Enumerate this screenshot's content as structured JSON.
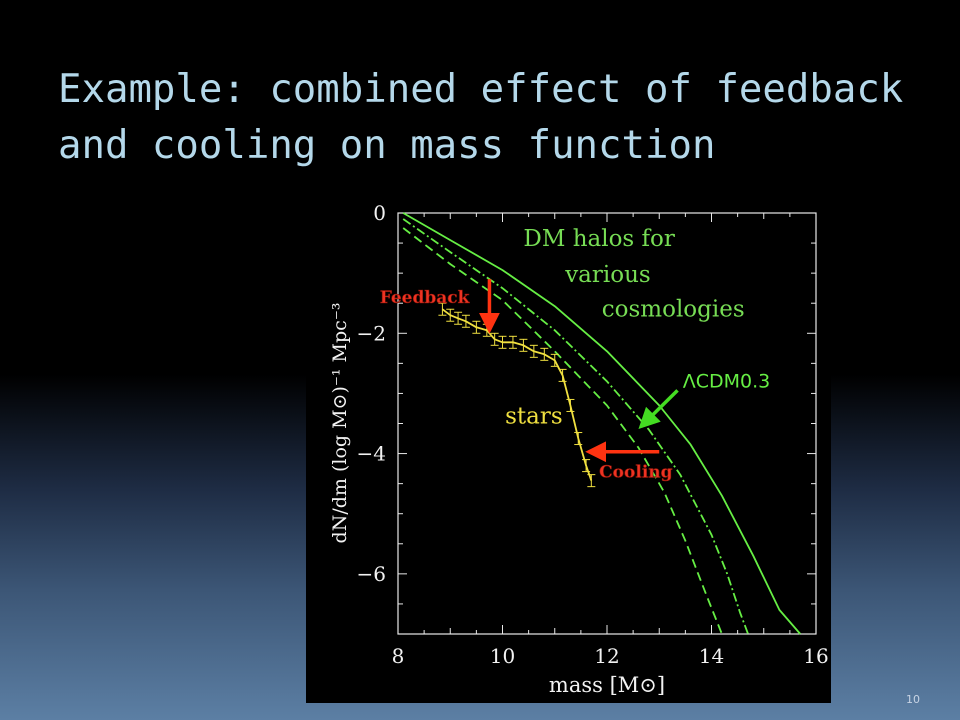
{
  "slide": {
    "title": "Example: combined effect of feedback and cooling on mass function",
    "page_number": "10"
  },
  "colors": {
    "title": "#b4d8ea",
    "dm_curves": "#66ee44",
    "dm_label": "#77dd55",
    "stars": "#f0e040",
    "arrows": "#ff3311",
    "annotation_text": "#ee3322"
  },
  "chart_data": {
    "type": "line",
    "xlabel": "mass [M⊙]",
    "ylabel": "dN/dm (log M⊙)⁻¹ Mpc⁻³",
    "xlim": [
      8,
      16
    ],
    "ylim": [
      -7,
      0
    ],
    "x_ticks": [
      8,
      10,
      12,
      14,
      16
    ],
    "x_tick_labels": [
      "8",
      "10",
      "12",
      "14",
      "16"
    ],
    "y_ticks": [
      0,
      -2,
      -4,
      -6
    ],
    "y_tick_labels": [
      "0",
      "−2",
      "−4",
      "−6"
    ],
    "grid": false,
    "series": [
      {
        "style": "solid",
        "color": "#66ee44",
        "x": [
          8.1,
          9.0,
          10.0,
          11.0,
          12.0,
          13.0,
          13.6,
          14.2,
          14.8,
          15.3,
          15.7
        ],
        "y": [
          0.0,
          -0.45,
          -0.95,
          -1.55,
          -2.3,
          -3.2,
          -3.85,
          -4.7,
          -5.7,
          -6.6,
          -7.0
        ]
      },
      {
        "style": "dash-dot",
        "color": "#66ee44",
        "x": [
          8.1,
          9.0,
          10.0,
          11.0,
          12.0,
          12.8,
          13.4,
          14.0,
          14.3,
          14.55,
          14.7
        ],
        "y": [
          -0.1,
          -0.65,
          -1.25,
          -1.95,
          -2.8,
          -3.6,
          -4.35,
          -5.35,
          -6.0,
          -6.65,
          -7.0
        ]
      },
      {
        "style": "dashed",
        "color": "#66ee44",
        "x": [
          8.1,
          9.0,
          10.0,
          11.0,
          12.0,
          12.6,
          13.1,
          13.5,
          13.9,
          14.2
        ],
        "y": [
          -0.25,
          -0.85,
          -1.45,
          -2.3,
          -3.2,
          -3.9,
          -4.65,
          -5.45,
          -6.35,
          -7.0
        ]
      },
      {
        "name": "stars",
        "style": "solid",
        "color": "#f0e040",
        "error_bars": true,
        "x": [
          8.85,
          9.0,
          9.15,
          9.3,
          9.5,
          9.7,
          9.85,
          10.0,
          10.2,
          10.4,
          10.6,
          10.8,
          11.0,
          11.15,
          11.3,
          11.45,
          11.6,
          11.7
        ],
        "y": [
          -1.6,
          -1.7,
          -1.75,
          -1.8,
          -1.9,
          -1.95,
          -2.1,
          -2.15,
          -2.15,
          -2.2,
          -2.3,
          -2.35,
          -2.45,
          -2.7,
          -3.2,
          -3.75,
          -4.2,
          -4.45
        ]
      }
    ],
    "annotations": [
      {
        "text": "DM halos for",
        "x": 10.4,
        "y": -0.55,
        "color": "#77dd55"
      },
      {
        "text": "various",
        "x": 11.2,
        "y": -1.15,
        "color": "#77dd55"
      },
      {
        "text": "cosmologies",
        "x": 11.9,
        "y": -1.72,
        "color": "#77dd55"
      },
      {
        "text": "ΛCDM0.3",
        "x": 13.45,
        "y": -2.9,
        "color": "#66ee44"
      },
      {
        "text": "stars",
        "x": 10.05,
        "y": -3.5,
        "color": "#f0e040"
      },
      {
        "text": "Feedback",
        "x": 7.65,
        "y": -1.5,
        "color": "#ee3322"
      },
      {
        "text": "Cooling",
        "x": 11.85,
        "y": -4.4,
        "color": "#ee3322"
      }
    ],
    "arrows": [
      {
        "name": "feedback-arrow",
        "color": "#ff3311",
        "from": [
          9.75,
          -1.1
        ],
        "to": [
          9.75,
          -1.95
        ]
      },
      {
        "name": "cooling-arrow",
        "color": "#ff3311",
        "from": [
          13.0,
          -3.97
        ],
        "to": [
          11.65,
          -3.97
        ]
      },
      {
        "name": "lcdm-arrow",
        "color": "#44dd22",
        "from": [
          13.35,
          -2.95
        ],
        "to": [
          12.65,
          -3.55
        ]
      }
    ]
  }
}
